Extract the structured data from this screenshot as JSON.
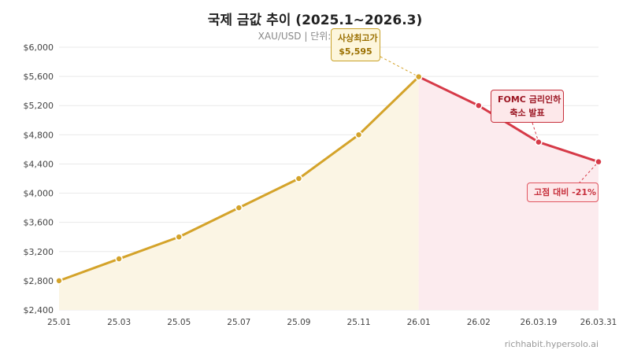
{
  "title": "국제 금값 추이 (2025.1~2026.3)",
  "subtitle": "XAU/USD  |  단위: 달러/온스",
  "watermark": "richhabit.hypersolo.ai",
  "annotations": {
    "peak_line1": "사상최고가",
    "peak_line2": "$5,595",
    "fomc_line1": "FOMC 금리인하",
    "fomc_line2": "축소 발표",
    "drop": "고점 대비 -21%"
  },
  "colors": {
    "rise": "#d4a32a",
    "rise_fill": "#fbf5e4",
    "fall": "#d63a48",
    "fall_fill": "#fcebee"
  },
  "chart_data": {
    "type": "line",
    "categories": [
      "25.01",
      "25.03",
      "25.05",
      "25.07",
      "25.09",
      "25.11",
      "26.01",
      "26.02",
      "26.03.19",
      "26.03.31"
    ],
    "values": [
      2800,
      3100,
      3400,
      3800,
      4200,
      4800,
      5595,
      5200,
      4700,
      4430
    ],
    "series": [
      {
        "segment": "rise",
        "from_index": 0,
        "to_index": 6
      },
      {
        "segment": "fall",
        "from_index": 6,
        "to_index": 9
      }
    ],
    "ylim": [
      2400,
      6000
    ],
    "yticks": [
      2400,
      2800,
      3200,
      3600,
      4000,
      4400,
      4800,
      5200,
      5600,
      6000
    ],
    "ytick_labels": [
      "$2,400",
      "$2,800",
      "$3,200",
      "$3,600",
      "$4,000",
      "$4,400",
      "$4,800",
      "$5,200",
      "$5,600",
      "$6,000"
    ],
    "grid": true,
    "xlabel": "",
    "ylabel": ""
  }
}
